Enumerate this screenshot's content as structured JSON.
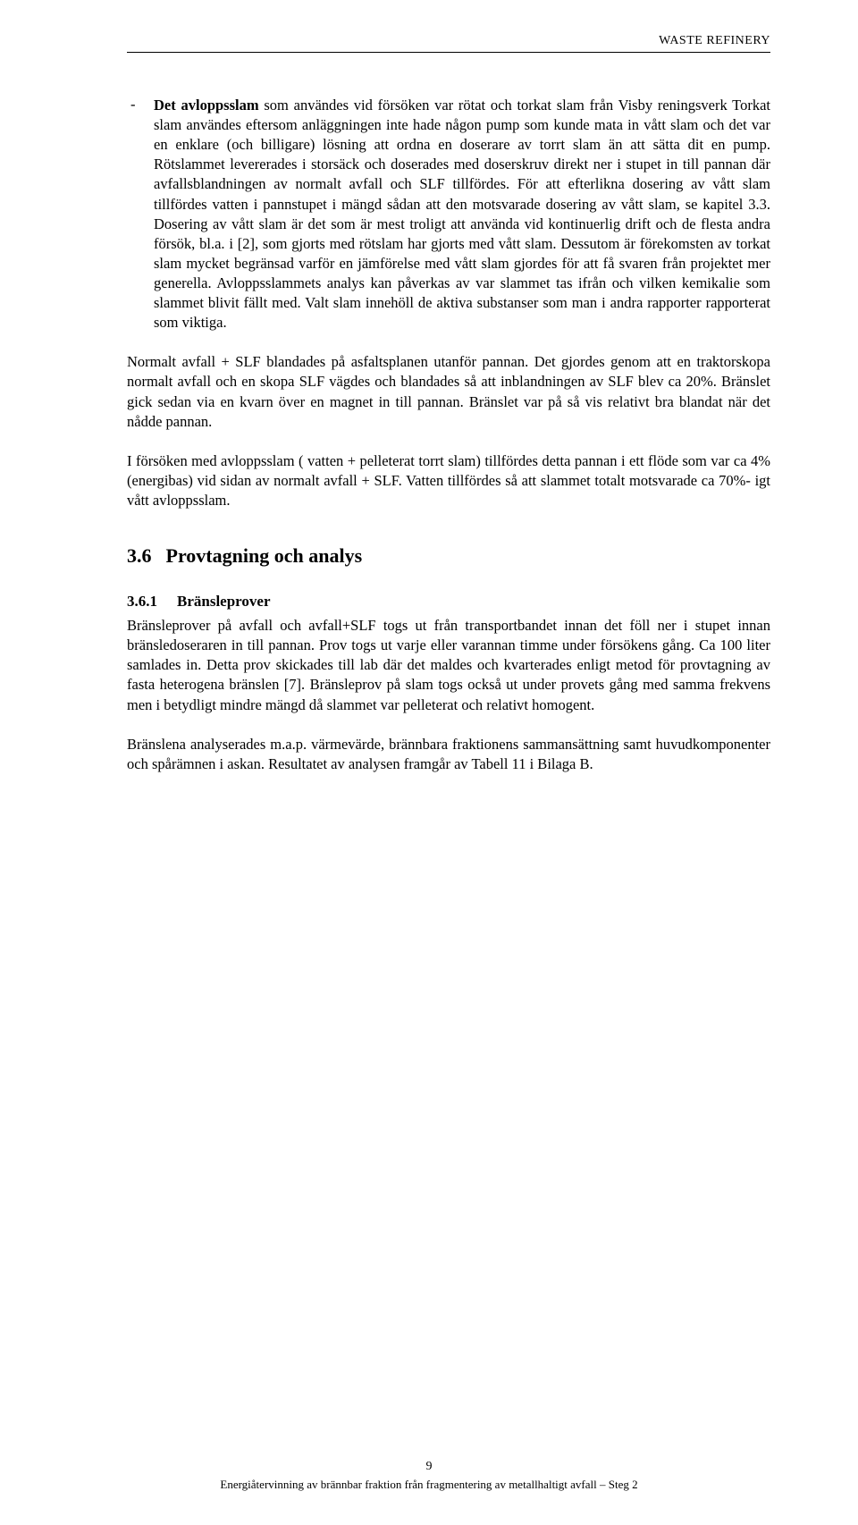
{
  "header": "WASTE REFINERY",
  "bullet": {
    "dash": "-",
    "lead": "Det avloppsslam",
    "text": " som användes vid försöken var rötat och torkat slam från Visby reningsverk Torkat slam användes eftersom anläggningen inte hade någon pump som kunde mata in vått slam och det var en enklare (och billigare) lösning att ordna en doserare av torrt slam än att sätta dit en pump. Rötslammet levererades i storsäck och doserades med doserskruv direkt ner i stupet in till pannan där avfallsblandningen av normalt avfall och SLF tillfördes. För att efterlikna dosering av vått slam tillfördes vatten i pannstupet i mängd sådan att den motsvarade dosering av vått slam, se kapitel 3.3. Dosering av vått slam är det som är mest troligt att använda vid kontinuerlig drift och de flesta andra försök, bl.a. i [2], som gjorts med rötslam har gjorts med vått slam. Dessutom är förekomsten av torkat slam mycket begränsad varför en jämförelse med vått slam gjordes för att få svaren från projektet mer generella. Avloppsslammets analys kan påverkas av var slammet tas ifrån och vilken kemikalie som slammet blivit fällt med. Valt slam innehöll de aktiva substanser som man i andra rapporter rapporterat som viktiga."
  },
  "para1": "Normalt avfall + SLF blandades på asfaltsplanen utanför pannan. Det gjordes genom att en traktorskopa normalt avfall och en skopa SLF vägdes och blandades så att inblandningen av SLF blev ca 20%. Bränslet gick sedan via en kvarn över en magnet in till pannan. Bränslet var på så vis relativt bra blandat när det nådde pannan.",
  "para2": "I försöken med avloppsslam ( vatten + pelleterat torrt slam) tillfördes detta pannan i ett flöde som var ca 4% (energibas) vid sidan av normalt avfall + SLF. Vatten tillfördes så att slammet totalt motsvarade ca 70%- igt vått avloppsslam.",
  "h2": {
    "num": "3.6",
    "title": "Provtagning och analys"
  },
  "h3": {
    "num": "3.6.1",
    "title": "Bränsleprover"
  },
  "para3": "Bränsleprover på avfall och avfall+SLF togs ut från transportbandet innan det föll ner i stupet innan bränsledoseraren in till pannan. Prov togs ut varje eller varannan timme under försökens gång. Ca 100 liter samlades in. Detta prov skickades till lab där det maldes och kvarterades enligt metod för provtagning av fasta heterogena bränslen [7]. Bränsleprov på slam togs också ut under provets gång med samma frekvens men i betydligt mindre mängd då slammet var pelleterat och relativt homogent.",
  "para4": "Bränslena analyserades m.a.p. värmevärde, brännbara fraktionens sammansättning samt huvudkomponenter och spårämnen i askan. Resultatet av analysen framgår av Tabell 11 i Bilaga B.",
  "footer": {
    "pagenum": "9",
    "line": "Energiåtervinning av brännbar fraktion från fragmentering av metallhaltigt avfall – Steg 2"
  }
}
